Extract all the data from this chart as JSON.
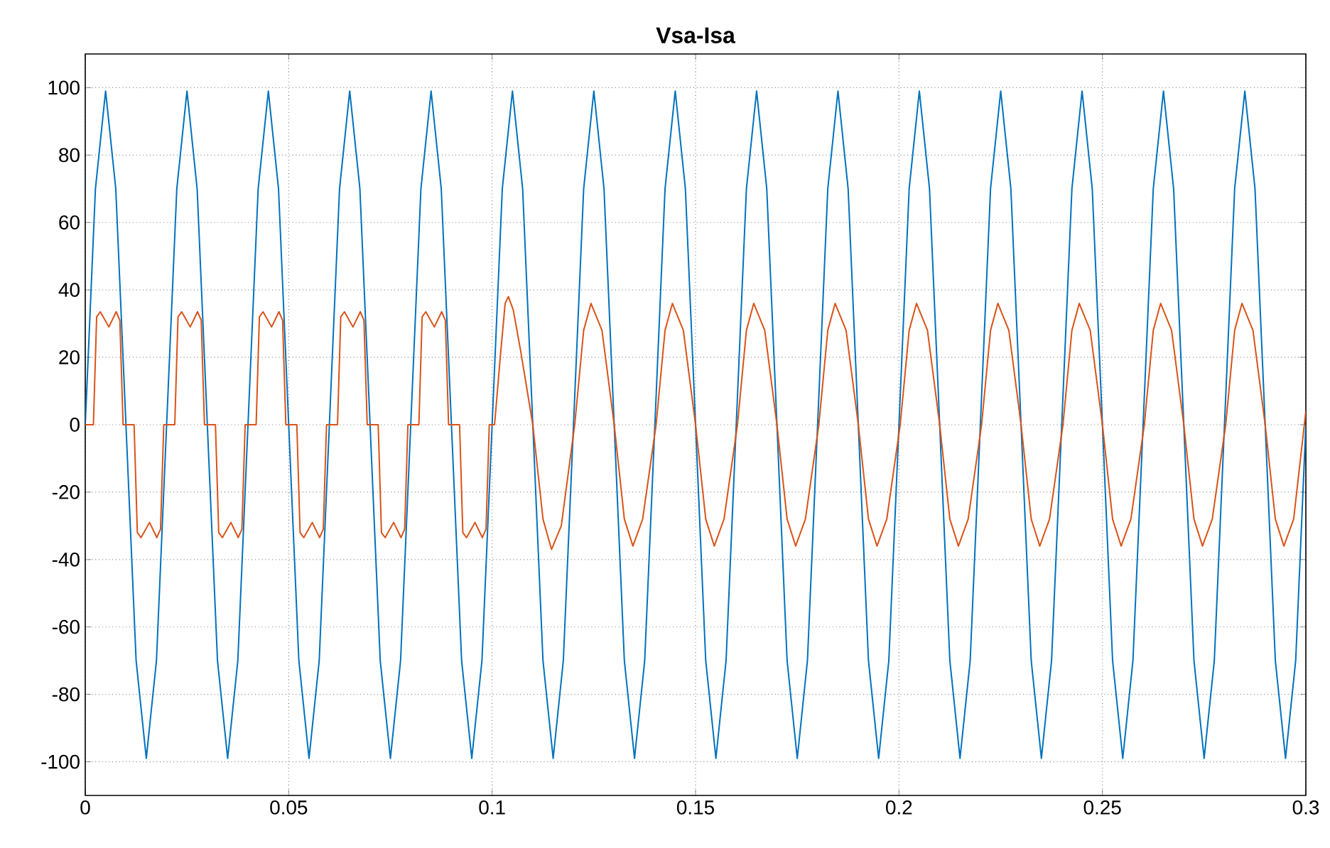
{
  "chart_data": {
    "type": "line",
    "title": "Vsa-Isa",
    "xlim": [
      0,
      0.3
    ],
    "ylim": [
      -110,
      110
    ],
    "xticks": [
      0,
      0.05,
      0.1,
      0.15,
      0.2,
      0.25,
      0.3
    ],
    "yticks": [
      -100,
      -80,
      -60,
      -40,
      -20,
      0,
      20,
      40,
      60,
      80,
      100
    ],
    "grid": true,
    "line_style": "solid",
    "marker": "none",
    "series": [
      {
        "color": "#0072bd",
        "x": [
          0,
          0.0025,
          0.005,
          0.0075,
          0.01,
          0.0125,
          0.015,
          0.0175,
          0.02,
          0.0225,
          0.025,
          0.0275,
          0.03,
          0.0325,
          0.035,
          0.0375,
          0.04,
          0.0425,
          0.045,
          0.0475,
          0.05,
          0.0525,
          0.055,
          0.0575,
          0.06,
          0.0625,
          0.065,
          0.0675,
          0.07,
          0.0725,
          0.075,
          0.0775,
          0.08,
          0.0825,
          0.085,
          0.0875,
          0.09,
          0.0925,
          0.095,
          0.0975,
          0.1,
          0.1025,
          0.105,
          0.1075,
          0.11,
          0.1125,
          0.115,
          0.1175,
          0.12,
          0.1225,
          0.125,
          0.1275,
          0.13,
          0.1325,
          0.135,
          0.1375,
          0.14,
          0.1425,
          0.145,
          0.1475,
          0.15,
          0.1525,
          0.155,
          0.1575,
          0.16,
          0.1625,
          0.165,
          0.1675,
          0.17,
          0.1725,
          0.175,
          0.1775,
          0.18,
          0.1825,
          0.185,
          0.1875,
          0.19,
          0.1925,
          0.195,
          0.1975,
          0.2,
          0.2025,
          0.205,
          0.2075,
          0.21,
          0.2125,
          0.215,
          0.2175,
          0.22,
          0.2225,
          0.225,
          0.2275,
          0.23,
          0.2325,
          0.235,
          0.2375,
          0.24,
          0.2425,
          0.245,
          0.2475,
          0.25,
          0.2525,
          0.255,
          0.2575,
          0.26,
          0.2625,
          0.265,
          0.2675,
          0.27,
          0.2725,
          0.275,
          0.2775,
          0.28,
          0.2825,
          0.285,
          0.2875,
          0.29,
          0.2925,
          0.295,
          0.2975,
          0.3
        ],
        "values": [
          0,
          70,
          99,
          70,
          0,
          -70,
          -99,
          -70,
          0,
          70,
          99,
          70,
          0,
          -70,
          -99,
          -70,
          0,
          70,
          99,
          70,
          0,
          -70,
          -99,
          -70,
          0,
          70,
          99,
          70,
          0,
          -70,
          -99,
          -70,
          0,
          70,
          99,
          70,
          0,
          -70,
          -99,
          -70,
          0,
          70,
          99,
          70,
          0,
          -70,
          -99,
          -70,
          0,
          70,
          99,
          70,
          0,
          -70,
          -99,
          -70,
          0,
          70,
          99,
          70,
          0,
          -70,
          -99,
          -70,
          0,
          70,
          99,
          70,
          0,
          -70,
          -99,
          -70,
          0,
          70,
          99,
          70,
          0,
          -70,
          -99,
          -70,
          0,
          70,
          99,
          70,
          0,
          -70,
          -99,
          -70,
          0,
          70,
          99,
          70,
          0,
          -70,
          -99,
          -70,
          0,
          70,
          99,
          70,
          0,
          -70,
          -99,
          -70,
          0,
          70,
          99,
          70,
          0,
          -70,
          -99,
          -70,
          0,
          70,
          99,
          70,
          0,
          -70,
          -99,
          -70,
          0
        ]
      },
      {
        "color": "#d95319",
        "x": [
          0,
          0.002,
          0.0028,
          0.0037,
          0.0058,
          0.0076,
          0.0085,
          0.0093,
          0.012,
          0.0128,
          0.0137,
          0.0158,
          0.0176,
          0.0185,
          0.0193,
          0.022,
          0.0228,
          0.0237,
          0.0258,
          0.0276,
          0.0285,
          0.0293,
          0.032,
          0.0328,
          0.0337,
          0.0358,
          0.0376,
          0.0385,
          0.0393,
          0.042,
          0.0428,
          0.0437,
          0.0458,
          0.0476,
          0.0485,
          0.0493,
          0.052,
          0.0528,
          0.0537,
          0.0558,
          0.0576,
          0.0585,
          0.0593,
          0.062,
          0.0628,
          0.0637,
          0.0658,
          0.0676,
          0.0685,
          0.0693,
          0.072,
          0.0728,
          0.0737,
          0.0758,
          0.0776,
          0.0785,
          0.0793,
          0.082,
          0.0828,
          0.0837,
          0.0858,
          0.0876,
          0.0885,
          0.0893,
          0.092,
          0.0928,
          0.0937,
          0.0958,
          0.0976,
          0.0985,
          0.0993,
          0.1006,
          0.102,
          0.1032,
          0.104,
          0.1052,
          0.107,
          0.11,
          0.1125,
          0.1146,
          0.117,
          0.1203,
          0.1225,
          0.1243,
          0.127,
          0.13,
          0.1325,
          0.1346,
          0.137,
          0.1403,
          0.1425,
          0.1443,
          0.147,
          0.15,
          0.1525,
          0.1546,
          0.157,
          0.1603,
          0.1625,
          0.1643,
          0.167,
          0.17,
          0.1725,
          0.1746,
          0.177,
          0.1803,
          0.1825,
          0.1843,
          0.187,
          0.19,
          0.1925,
          0.1946,
          0.197,
          0.2003,
          0.2025,
          0.2043,
          0.207,
          0.21,
          0.2125,
          0.2146,
          0.217,
          0.2203,
          0.2225,
          0.2243,
          0.227,
          0.23,
          0.2325,
          0.2346,
          0.237,
          0.2403,
          0.2425,
          0.2443,
          0.247,
          0.25,
          0.2525,
          0.2546,
          0.257,
          0.2603,
          0.2625,
          0.2643,
          0.267,
          0.27,
          0.2725,
          0.2746,
          0.277,
          0.2803,
          0.2825,
          0.2843,
          0.287,
          0.29,
          0.2925,
          0.2946,
          0.297,
          0.3
        ],
        "values": [
          0,
          0,
          32,
          33.5,
          29,
          33.5,
          31,
          0,
          0,
          -32,
          -33.5,
          -29,
          -33.5,
          -31,
          0,
          0,
          32,
          33.5,
          29,
          33.5,
          31,
          0,
          0,
          -32,
          -33.5,
          -29,
          -33.5,
          -31,
          0,
          0,
          32,
          33.5,
          29,
          33.5,
          31,
          0,
          0,
          -32,
          -33.5,
          -29,
          -33.5,
          -31,
          0,
          0,
          32,
          33.5,
          29,
          33.5,
          31,
          0,
          0,
          -32,
          -33.5,
          -29,
          -33.5,
          -31,
          0,
          0,
          32,
          33.5,
          29,
          33.5,
          31,
          0,
          0,
          -32,
          -33.5,
          -29,
          -33.5,
          -31,
          0,
          0,
          20,
          36,
          38,
          34,
          22,
          0,
          -28,
          -37,
          -30,
          0,
          28,
          36,
          28,
          0,
          -28,
          -36,
          -28,
          0,
          28,
          36,
          28,
          0,
          -28,
          -36,
          -28,
          0,
          28,
          36,
          28,
          0,
          -28,
          -36,
          -28,
          0,
          28,
          36,
          28,
          0,
          -28,
          -36,
          -28,
          0,
          28,
          36,
          28,
          0,
          -28,
          -36,
          -28,
          0,
          28,
          36,
          28,
          0,
          -28,
          -36,
          -28,
          0,
          28,
          36,
          28,
          0,
          -28,
          -36,
          -28,
          0,
          28,
          36,
          28,
          0,
          -28,
          -36,
          -28,
          0,
          28,
          36,
          28,
          0,
          -28,
          -36,
          -28,
          4
        ]
      }
    ]
  }
}
